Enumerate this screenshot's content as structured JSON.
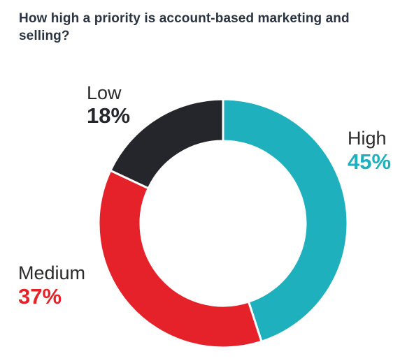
{
  "chart_data": {
    "type": "pie",
    "title": "How high a priority is account-based marketing and selling?",
    "categories": [
      "High",
      "Medium",
      "Low"
    ],
    "values": [
      45,
      37,
      18
    ],
    "value_labels": [
      "45%",
      "37%",
      "18%"
    ],
    "colors": [
      "#1fb0bd",
      "#e5222a",
      "#25262b"
    ],
    "donut": true,
    "legend": "none (labels placed beside slices)"
  }
}
